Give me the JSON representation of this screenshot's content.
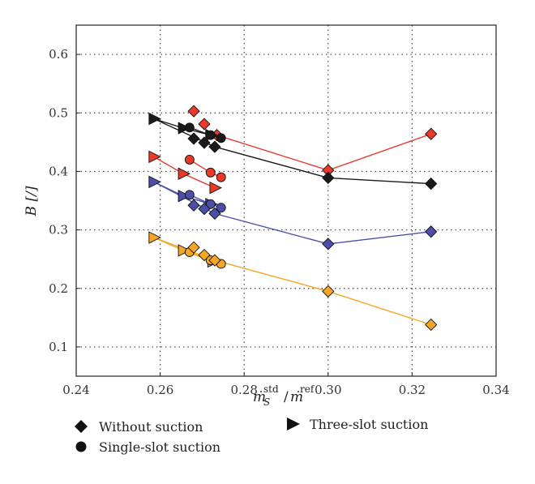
{
  "chart_data": {
    "type": "scatter",
    "title": "",
    "xlabel_main": "ṁ",
    "xlabel_sub": "S",
    "xlabel_sup": "std",
    "xlabel_sep": "/",
    "xlabel_main2": "ṁ",
    "xlabel_sup2": "ref",
    "ylabel": "B [/]",
    "xlim": [
      0.24,
      0.34
    ],
    "ylim": [
      0.05,
      0.65
    ],
    "xticks": [
      0.24,
      0.26,
      0.28,
      0.3,
      0.32,
      0.34
    ],
    "xtick_labels": [
      "0.24",
      "0.26",
      "0.28",
      "0.30",
      "0.32",
      "0.34"
    ],
    "yticks": [
      0.1,
      0.2,
      0.3,
      0.4,
      0.5,
      0.6
    ],
    "ytick_labels": [
      "0.1",
      "0.2",
      "0.3",
      "0.4",
      "0.5",
      "0.6"
    ],
    "grid": true,
    "legend_placement": "bottom",
    "legend": [
      {
        "marker": "diamond",
        "label": "Without suction"
      },
      {
        "marker": "circle",
        "label": "Single-slot suction"
      },
      {
        "marker": "triangle",
        "label": "Three-slot suction"
      }
    ],
    "series": [
      {
        "color": "#e8392b",
        "without": [
          [
            0.268,
            0.503
          ],
          [
            0.2705,
            0.481
          ],
          [
            0.2735,
            0.462
          ],
          [
            0.3,
            0.402
          ],
          [
            0.3245,
            0.464
          ]
        ],
        "without_line": [
          [
            0.2735,
            0.462
          ],
          [
            0.3,
            0.402
          ],
          [
            0.3245,
            0.464
          ]
        ],
        "single": [
          [
            0.267,
            0.42
          ],
          [
            0.272,
            0.398
          ],
          [
            0.2745,
            0.39
          ]
        ],
        "three": [
          [
            0.2585,
            0.425
          ],
          [
            0.2655,
            0.396
          ],
          [
            0.273,
            0.372
          ]
        ]
      },
      {
        "color": "#1a1a1a",
        "without": [
          [
            0.268,
            0.456
          ],
          [
            0.2705,
            0.449
          ],
          [
            0.273,
            0.442
          ],
          [
            0.3,
            0.389
          ],
          [
            0.3245,
            0.379
          ]
        ],
        "without_line": [
          [
            0.2585,
            0.49
          ],
          [
            0.273,
            0.442
          ],
          [
            0.3,
            0.389
          ],
          [
            0.3245,
            0.379
          ]
        ],
        "single": [
          [
            0.267,
            0.475
          ],
          [
            0.272,
            0.462
          ],
          [
            0.2745,
            0.457
          ]
        ],
        "three": [
          [
            0.2585,
            0.49
          ],
          [
            0.2655,
            0.474
          ],
          [
            0.272,
            0.462
          ]
        ]
      },
      {
        "color": "#4b4fa8",
        "without": [
          [
            0.268,
            0.342
          ],
          [
            0.2705,
            0.336
          ],
          [
            0.273,
            0.328
          ],
          [
            0.3,
            0.276
          ],
          [
            0.3245,
            0.297
          ]
        ],
        "without_line": [
          [
            0.2585,
            0.382
          ],
          [
            0.273,
            0.328
          ],
          [
            0.3,
            0.276
          ],
          [
            0.3245,
            0.297
          ]
        ],
        "single": [
          [
            0.267,
            0.36
          ],
          [
            0.272,
            0.344
          ],
          [
            0.2745,
            0.338
          ]
        ],
        "three": [
          [
            0.2585,
            0.382
          ],
          [
            0.2655,
            0.358
          ],
          [
            0.272,
            0.344
          ]
        ]
      },
      {
        "color": "#f5a623",
        "without": [
          [
            0.268,
            0.27
          ],
          [
            0.2705,
            0.257
          ],
          [
            0.273,
            0.248
          ],
          [
            0.3,
            0.195
          ],
          [
            0.3245,
            0.138
          ]
        ],
        "without_line": [
          [
            0.2585,
            0.287
          ],
          [
            0.273,
            0.248
          ],
          [
            0.3,
            0.195
          ],
          [
            0.3245,
            0.138
          ]
        ],
        "single": [
          [
            0.267,
            0.262
          ],
          [
            0.272,
            0.248
          ],
          [
            0.2745,
            0.242
          ]
        ],
        "three": [
          [
            0.2585,
            0.287
          ],
          [
            0.2655,
            0.265
          ],
          [
            0.2725,
            0.246
          ]
        ]
      }
    ]
  }
}
